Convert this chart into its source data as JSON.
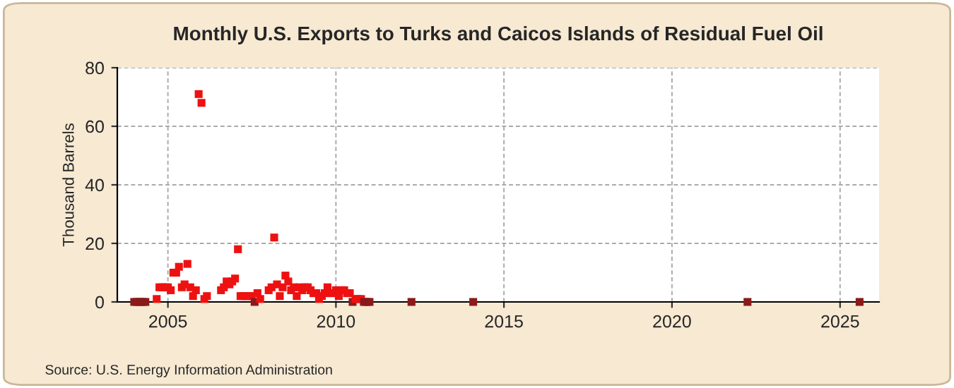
{
  "chart_data": {
    "type": "scatter",
    "title": "Monthly U.S. Exports to Turks and Caicos Islands of Residual Fuel Oil",
    "ylabel": "Thousand Barrels",
    "annotations": [
      "Source: U.S. Energy Information Administration"
    ],
    "x": [
      "2004-01",
      "2004-02",
      "2004-03",
      "2004-04",
      "2004-05",
      "2004-09",
      "2004-10",
      "2004-11",
      "2004-12",
      "2005-01",
      "2005-02",
      "2005-03",
      "2005-04",
      "2005-05",
      "2005-06",
      "2005-07",
      "2005-08",
      "2005-09",
      "2005-10",
      "2005-11",
      "2005-12",
      "2006-01",
      "2006-02",
      "2006-03",
      "2006-08",
      "2006-09",
      "2006-10",
      "2006-11",
      "2006-12",
      "2007-01",
      "2007-02",
      "2007-03",
      "2007-04",
      "2007-05",
      "2007-06",
      "2007-07",
      "2007-08",
      "2007-09",
      "2007-10",
      "2008-01",
      "2008-02",
      "2008-03",
      "2008-04",
      "2008-05",
      "2008-06",
      "2008-07",
      "2008-08",
      "2008-09",
      "2008-10",
      "2008-11",
      "2008-12",
      "2009-01",
      "2009-02",
      "2009-03",
      "2009-04",
      "2009-05",
      "2009-06",
      "2009-07",
      "2009-08",
      "2009-09",
      "2009-10",
      "2009-11",
      "2009-12",
      "2010-01",
      "2010-02",
      "2010-03",
      "2010-04",
      "2010-05",
      "2010-06",
      "2010-07",
      "2010-08",
      "2010-09",
      "2010-10",
      "2010-11",
      "2010-12",
      "2011-01",
      "2012-04",
      "2014-02",
      "2022-04",
      "2025-08"
    ],
    "values": [
      0,
      0,
      0,
      0,
      0,
      1,
      5,
      5,
      5,
      5,
      4,
      10,
      10,
      12,
      5,
      6,
      13,
      5,
      2,
      4,
      71,
      68,
      1,
      2,
      4,
      5,
      7,
      6,
      7,
      8,
      18,
      2,
      2,
      2,
      2,
      2,
      0,
      3,
      1,
      4,
      5,
      22,
      6,
      2,
      5,
      9,
      7,
      4,
      5,
      2,
      5,
      4,
      5,
      5,
      4,
      3,
      3,
      1,
      2,
      3,
      5,
      3,
      3,
      4,
      2,
      4,
      4,
      3,
      3,
      0,
      1,
      1,
      1,
      0,
      0,
      0,
      0,
      0,
      0,
      0
    ],
    "colors": [
      "#8b1a1a",
      "#8b1a1a",
      "#8b1a1a",
      "#8b1a1a",
      "#8b1a1a",
      "#ee1111",
      "#ee1111",
      "#ee1111",
      "#ee1111",
      "#ee1111",
      "#ee1111",
      "#ee1111",
      "#ee1111",
      "#ee1111",
      "#ee1111",
      "#ee1111",
      "#ee1111",
      "#ee1111",
      "#ee1111",
      "#ee1111",
      "#ee1111",
      "#ee1111",
      "#ee1111",
      "#ee1111",
      "#ee1111",
      "#ee1111",
      "#ee1111",
      "#ee1111",
      "#ee1111",
      "#ee1111",
      "#ee1111",
      "#ee1111",
      "#ee1111",
      "#ee1111",
      "#ee1111",
      "#ee1111",
      "#8b1a1a",
      "#ee1111",
      "#ee1111",
      "#ee1111",
      "#ee1111",
      "#ee1111",
      "#ee1111",
      "#ee1111",
      "#ee1111",
      "#ee1111",
      "#ee1111",
      "#ee1111",
      "#ee1111",
      "#ee1111",
      "#ee1111",
      "#ee1111",
      "#ee1111",
      "#ee1111",
      "#ee1111",
      "#ee1111",
      "#ee1111",
      "#ee1111",
      "#ee1111",
      "#ee1111",
      "#ee1111",
      "#ee1111",
      "#ee1111",
      "#ee1111",
      "#ee1111",
      "#ee1111",
      "#ee1111",
      "#ee1111",
      "#ee1111",
      "#8b1a1a",
      "#ee1111",
      "#ee1111",
      "#ee1111",
      "#8b1a1a",
      "#8b1a1a",
      "#8b1a1a",
      "#8b1a1a",
      "#8b1a1a",
      "#8b1a1a",
      "#8b1a1a"
    ],
    "xlim": [
      "2003-07",
      "2026-03"
    ],
    "xticks": [
      {
        "value": "2005",
        "label": "2005"
      },
      {
        "value": "2010",
        "label": "2010"
      },
      {
        "value": "2015",
        "label": "2015"
      },
      {
        "value": "2020",
        "label": "2020"
      },
      {
        "value": "2025",
        "label": "2025"
      }
    ],
    "ylim": [
      0,
      80
    ],
    "yticks": [
      0,
      20,
      40,
      60,
      80
    ],
    "grid": true,
    "marker": "square",
    "legend": false
  }
}
